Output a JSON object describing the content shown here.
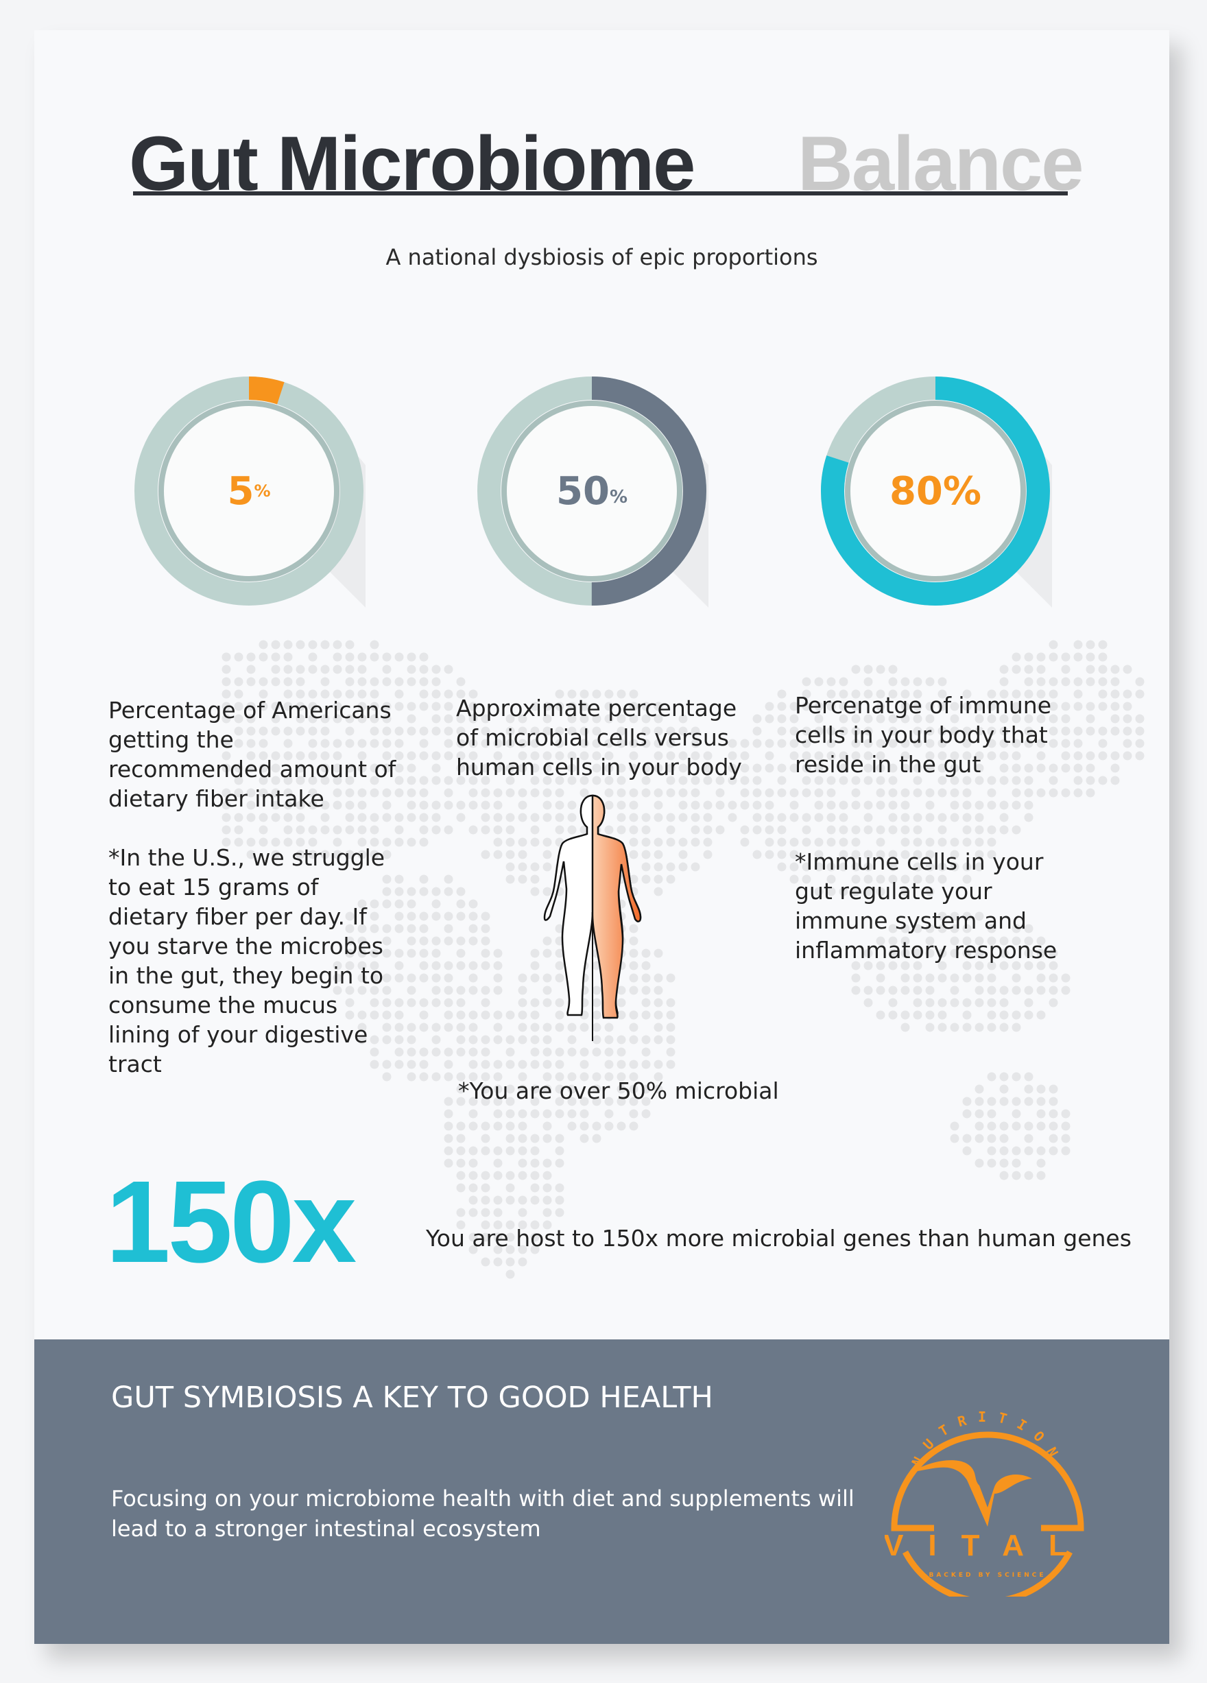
{
  "title": {
    "main": "Gut Microbiome",
    "accent": "Balance"
  },
  "subtitle": "A national dysbiosis of epic proportions",
  "stats": [
    {
      "value": "5",
      "unit": "%",
      "percent": 5,
      "color": "#f7941d",
      "ring_color": "#bdd3cf",
      "description": "Percentage of Americans getting the recommended amount of dietary fiber intake",
      "note": "*In the U.S., we struggle to eat 15 grams of dietary fiber per day.  If you starve the microbes in the gut, they begin to consume the mucus lining of your digestive tract"
    },
    {
      "value": "50",
      "unit": "%",
      "percent": 50,
      "color": "#6b7888",
      "ring_color": "#bdd3cf",
      "description": "Approximate percentage of microbial cells versus human cells in your body",
      "note": "*You are over 50% microbial"
    },
    {
      "value": "80%",
      "unit": "",
      "percent": 80,
      "color": "#1fbfd4",
      "text_color": "#f7941d",
      "ring_color": "#bdd3cf",
      "description": "Percenatge of immune cells in your body that reside in the gut",
      "note": "*Immune cells in your gut regulate your immune system and inflammatory response"
    }
  ],
  "genes": {
    "value": "150x",
    "text": "You are host to 150x more microbial genes than human genes"
  },
  "footer": {
    "heading": "GUT SYMBIOSIS A KEY TO GOOD HEALTH",
    "body": "Focusing on your microbiome health with diet and supplements will lead to a stronger intestinal ecosystem",
    "bg": "#6b7888"
  },
  "logo": {
    "top": "NUTRITION",
    "name": "VITAL",
    "tagline": "BACKED BY SCIENCE",
    "color": "#f7941d"
  }
}
